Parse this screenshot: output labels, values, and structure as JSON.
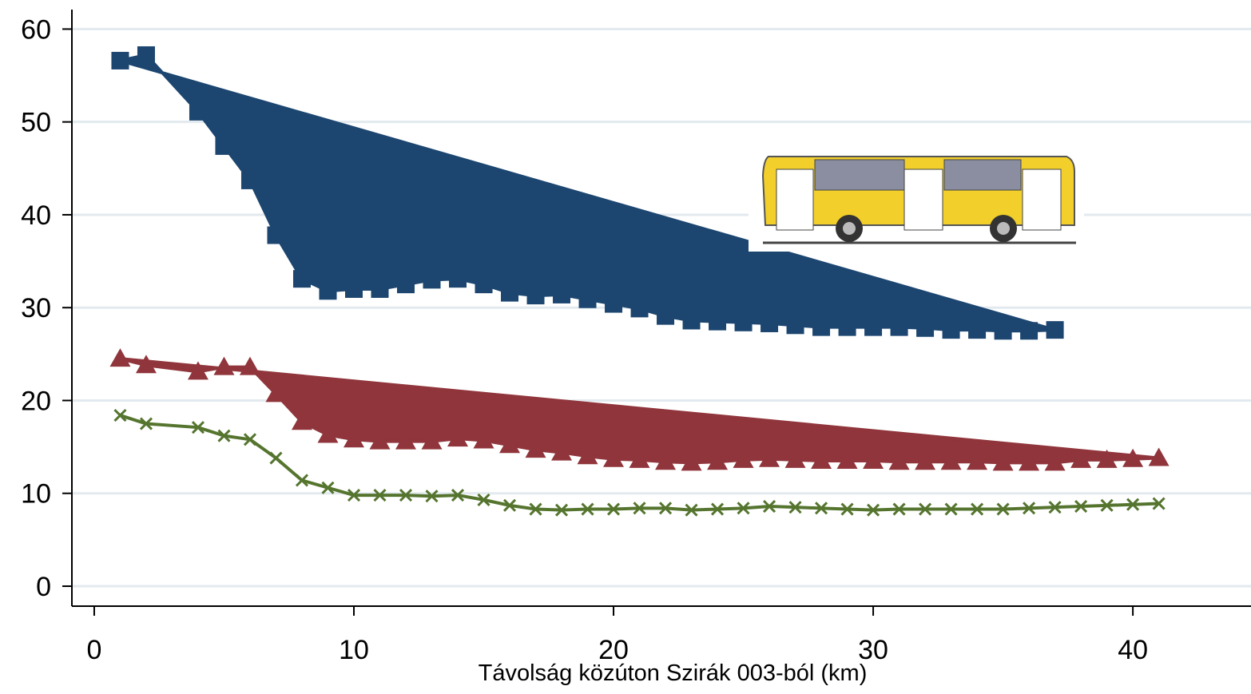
{
  "chart_data": {
    "type": "line",
    "xlabel": "Távolság közúton Szirák 003-ból (km)",
    "xlim": [
      -0.86,
      44.55
    ],
    "ylim": [
      -2.15,
      62.1
    ],
    "xticks": [
      0,
      10,
      20,
      30,
      40
    ],
    "yticks": [
      0,
      10,
      20,
      30,
      40,
      50,
      60
    ],
    "grid": true,
    "series": [
      {
        "color": "#1c4670",
        "marker": "square",
        "fill": true,
        "x": [
          1,
          2,
          4,
          5,
          6,
          7,
          8,
          9,
          10,
          11,
          12,
          13,
          14,
          15,
          16,
          17,
          18,
          19,
          20,
          21,
          22,
          23,
          24,
          25,
          26,
          27,
          28,
          29,
          30,
          31,
          32,
          33,
          34,
          35,
          36,
          37
        ],
        "values": [
          56.6,
          57.2,
          51.1,
          47.4,
          43.7,
          37.8,
          33.1,
          31.8,
          32.0,
          32.0,
          32.5,
          33.0,
          33.1,
          32.5,
          31.6,
          31.3,
          31.4,
          30.9,
          30.4,
          29.9,
          29.1,
          28.6,
          28.5,
          28.4,
          28.3,
          28.1,
          27.9,
          27.9,
          27.9,
          27.9,
          27.8,
          27.6,
          27.6,
          27.5,
          27.5,
          27.6
        ]
      },
      {
        "color": "#90353b",
        "marker": "triangle",
        "fill": true,
        "x": [
          1,
          2,
          4,
          5,
          6,
          7,
          8,
          9,
          10,
          11,
          12,
          13,
          14,
          15,
          16,
          17,
          18,
          19,
          20,
          21,
          22,
          23,
          24,
          25,
          26,
          27,
          28,
          29,
          30,
          31,
          32,
          33,
          34,
          35,
          36,
          37,
          38,
          39,
          40,
          41
        ],
        "values": [
          24.5,
          23.8,
          23.1,
          23.6,
          23.6,
          20.7,
          17.7,
          16.3,
          15.8,
          15.6,
          15.6,
          15.6,
          15.9,
          15.7,
          15.2,
          14.7,
          14.4,
          14.0,
          13.7,
          13.6,
          13.4,
          13.3,
          13.4,
          13.6,
          13.7,
          13.6,
          13.5,
          13.5,
          13.5,
          13.4,
          13.4,
          13.4,
          13.4,
          13.3,
          13.3,
          13.3,
          13.6,
          13.6,
          13.7,
          13.8
        ]
      },
      {
        "color": "#55752f",
        "marker": "x",
        "fill": false,
        "x": [
          1,
          2,
          4,
          5,
          6,
          7,
          8,
          9,
          10,
          11,
          12,
          13,
          14,
          15,
          16,
          17,
          18,
          19,
          20,
          21,
          22,
          23,
          24,
          25,
          26,
          27,
          28,
          29,
          30,
          31,
          32,
          33,
          34,
          35,
          36,
          37,
          38,
          39,
          40,
          41
        ],
        "values": [
          18.4,
          17.5,
          17.1,
          16.2,
          15.8,
          13.8,
          11.4,
          10.6,
          9.8,
          9.8,
          9.8,
          9.7,
          9.8,
          9.3,
          8.7,
          8.3,
          8.2,
          8.3,
          8.3,
          8.4,
          8.4,
          8.2,
          8.3,
          8.4,
          8.6,
          8.5,
          8.4,
          8.3,
          8.2,
          8.3,
          8.3,
          8.3,
          8.3,
          8.3,
          8.4,
          8.5,
          8.6,
          8.7,
          8.8,
          8.9
        ]
      }
    ]
  }
}
